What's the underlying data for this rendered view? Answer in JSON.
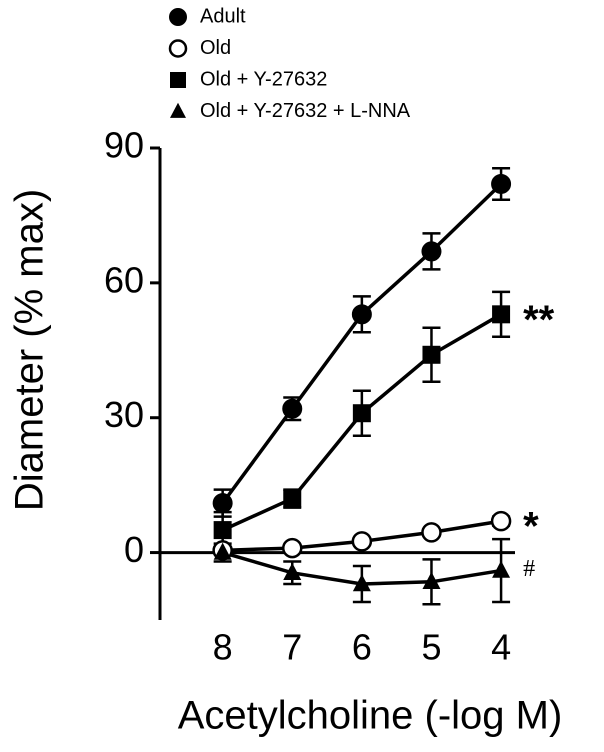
{
  "chart_data": {
    "type": "line",
    "x_label": "Acetylcholine (-log M)",
    "y_label": "Diameter (% max)",
    "x": [
      8,
      7,
      6,
      5,
      4
    ],
    "xlim": [
      8.9,
      3.8
    ],
    "xticks": [
      8,
      7,
      6,
      5,
      4
    ],
    "ylim": [
      -15,
      90
    ],
    "yticks": [
      0,
      30,
      60,
      90
    ],
    "legend": "top-left",
    "series": [
      {
        "name": "Adult",
        "color": "#000000",
        "marker": "circle",
        "values": [
          11,
          32,
          53,
          67,
          82
        ],
        "errors": [
          3,
          2.5,
          4,
          4,
          3.5
        ]
      },
      {
        "name": "Old",
        "color": "#000000",
        "marker": "circle-open",
        "values": [
          0.5,
          1,
          2.5,
          4.5,
          7
        ],
        "errors": [
          0.5,
          0.5,
          0.7,
          0.7,
          1
        ],
        "annotation": "*"
      },
      {
        "name": "Old + Y-27632",
        "color": "#000000",
        "marker": "square",
        "values": [
          5,
          12,
          31,
          44,
          53
        ],
        "errors": [
          4,
          2,
          5,
          6,
          5
        ],
        "annotation": "**"
      },
      {
        "name": "Old + Y-27632 + L-NNA",
        "color": "#000000",
        "marker": "triangle",
        "values": [
          0,
          -4.5,
          -7,
          -6.5,
          -4
        ],
        "errors": [
          2,
          2.5,
          4,
          5,
          7
        ],
        "annotation": "#"
      }
    ]
  }
}
